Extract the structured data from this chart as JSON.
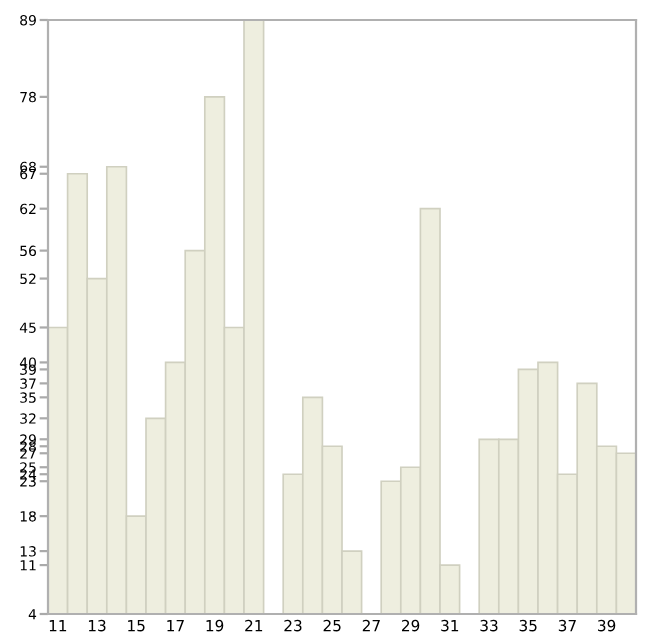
{
  "chart_data": {
    "type": "bar",
    "categories": [
      "11",
      null,
      "13",
      null,
      "15",
      null,
      "17",
      null,
      "19",
      null,
      "21",
      null,
      "23",
      null,
      "25",
      null,
      "27",
      null,
      "29",
      null,
      "31",
      null,
      "33",
      null,
      "35",
      null,
      "37",
      null,
      "39",
      null
    ],
    "values": [
      45,
      67,
      52,
      68,
      18,
      32,
      40,
      56,
      78,
      45,
      89,
      4,
      24,
      35,
      28,
      13,
      4,
      23,
      25,
      62,
      11,
      4,
      29,
      29,
      39,
      40,
      24,
      37,
      28,
      27
    ],
    "color": "#eeeedf",
    "ylim": [
      4,
      89
    ],
    "yticks": [
      4,
      11,
      13,
      18,
      23,
      24,
      25,
      27,
      28,
      29,
      32,
      35,
      37,
      39,
      40,
      45,
      52,
      56,
      62,
      67,
      68,
      78,
      89
    ],
    "grid": false
  }
}
